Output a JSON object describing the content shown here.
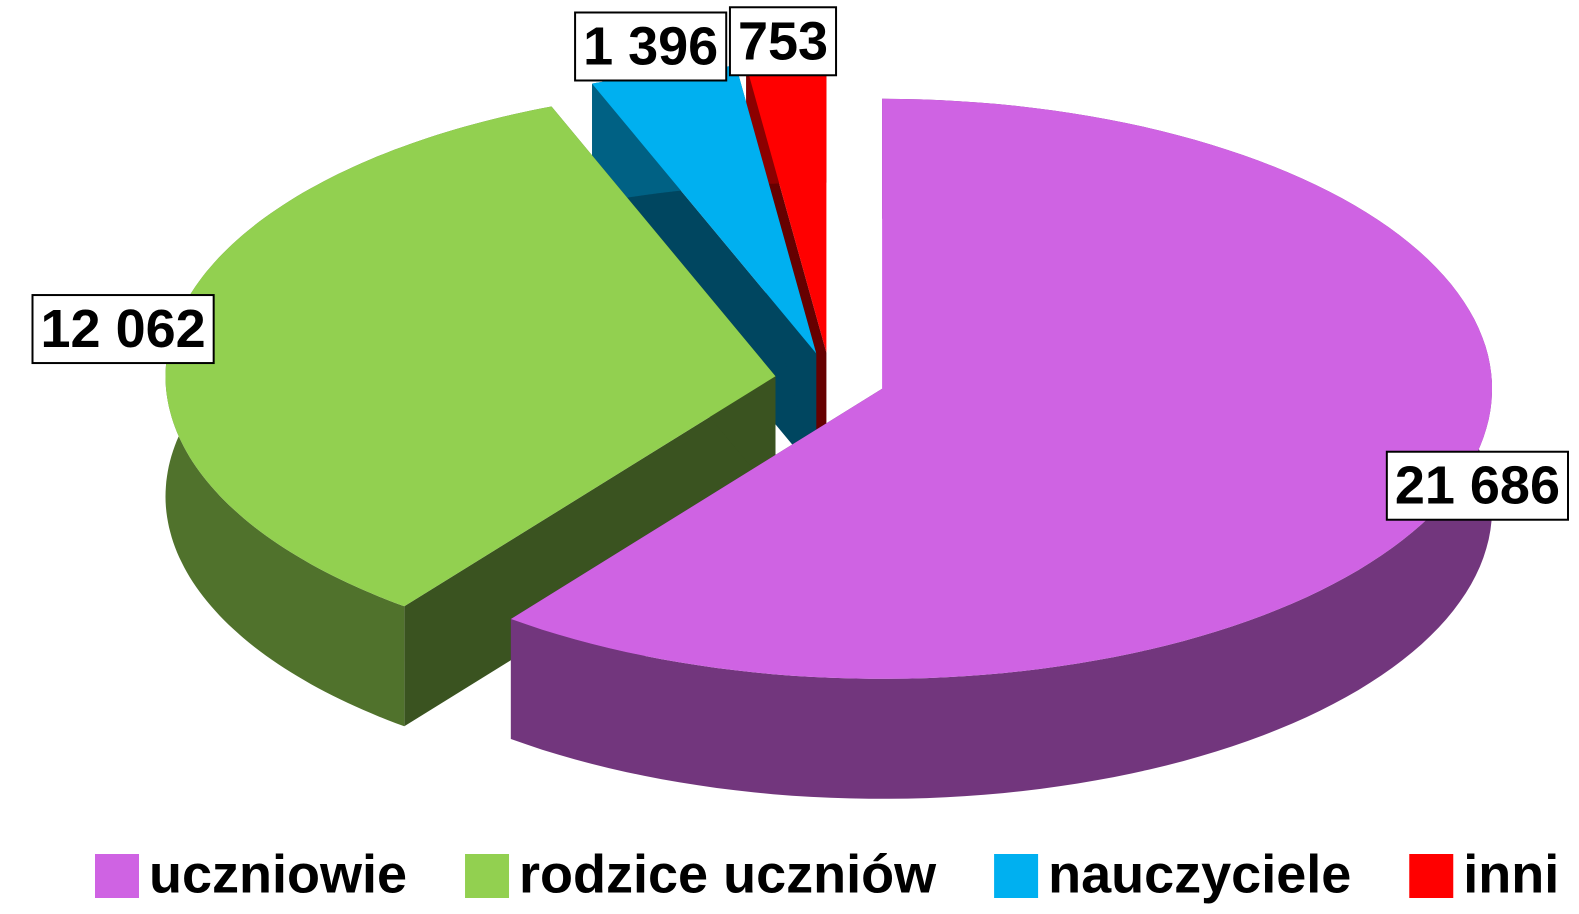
{
  "chart_data": {
    "type": "pie",
    "categories": [
      "uczniowie",
      "rodzice uczniów",
      "nauczyciele",
      "inni"
    ],
    "values": [
      21686,
      12062,
      1396,
      753
    ],
    "value_labels": [
      "21 686",
      "12 062",
      "1 396",
      "753"
    ],
    "colors": [
      "#cf63e3",
      "#92d050",
      "#00b0f0",
      "#ff0000"
    ],
    "legend": "bottom"
  }
}
